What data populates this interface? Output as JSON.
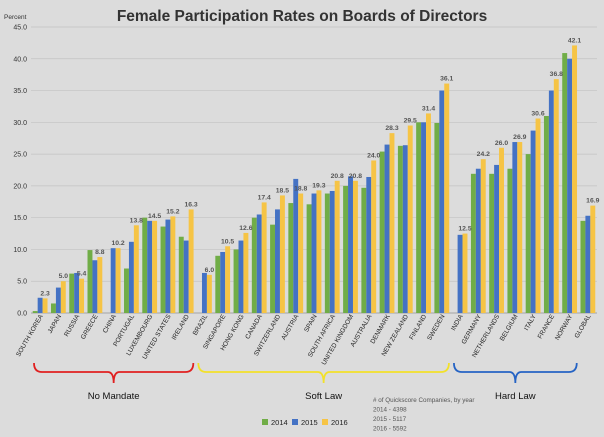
{
  "chart_data": {
    "type": "bar",
    "title": "Female Participation Rates on Boards of Directors",
    "ylabel": "Percent",
    "ylim": [
      0,
      45
    ],
    "yticks": [
      "0.0",
      "5.0",
      "10.0",
      "15.0",
      "20.0",
      "25.0",
      "30.0",
      "35.0",
      "40.0",
      "45.0"
    ],
    "grid": true,
    "legend_position": "bottom",
    "categories": [
      "SOUTH KOREA",
      "JAPAN",
      "RUSSIA",
      "GREECE",
      "CHINA",
      "PORTUGAL",
      "LUXEMBOURG",
      "UNITED STATES",
      "IRELAND",
      "BRAZIL",
      "SINGAPORE",
      "HONG KONG",
      "CANADA",
      "SWITZERLAND",
      "AUSTRIA",
      "SPAIN",
      "SOUTH AFRICA",
      "UNITED KINGDOM",
      "AUSTRALIA",
      "DENMARK",
      "NEW ZEALAND",
      "FINLAND",
      "SWEDEN",
      "INDIA",
      "GERMANY",
      "NETHERLANDS",
      "BELGIUM",
      "ITALY",
      "FRANCE",
      "NORWAY",
      "GLOBAL"
    ],
    "series": [
      {
        "name": "2014",
        "color": "#70ad47",
        "values": [
          0.3,
          1.5,
          6.2,
          9.9,
          0,
          7.0,
          15.0,
          13.6,
          12.0,
          0,
          9.0,
          10.0,
          15.0,
          13.9,
          17.3,
          17.1,
          18.8,
          20.0,
          19.7,
          25.4,
          26.3,
          30.0,
          29.9,
          0,
          21.9,
          21.9,
          22.7,
          25.0,
          31.0,
          40.9,
          14.5
        ]
      },
      {
        "name": "2015",
        "color": "#4472c4",
        "values": [
          2.4,
          4.0,
          6.3,
          8.3,
          10.2,
          11.2,
          14.5,
          14.7,
          11.4,
          6.3,
          9.6,
          11.4,
          15.5,
          16.3,
          21.1,
          18.8,
          19.2,
          21.5,
          21.4,
          26.5,
          26.4,
          30.0,
          35.0,
          12.3,
          22.7,
          23.3,
          26.9,
          28.7,
          35.0,
          40.0,
          15.3
        ]
      },
      {
        "name": "2016",
        "color": "#f6c445",
        "values": [
          2.3,
          5.0,
          5.4,
          8.8,
          10.2,
          13.8,
          14.5,
          15.2,
          16.3,
          6.0,
          10.5,
          12.6,
          17.4,
          18.5,
          18.8,
          19.3,
          20.8,
          20.8,
          24.0,
          28.3,
          29.5,
          31.4,
          36.1,
          12.5,
          24.2,
          26.0,
          26.9,
          30.6,
          36.8,
          42.1,
          16.9
        ]
      }
    ],
    "data_labels": [
      {
        "category": "SOUTH KOREA",
        "value": "2.3"
      },
      {
        "category": "JAPAN",
        "value": "5.0"
      },
      {
        "category": "RUSSIA",
        "value": "5.4"
      },
      {
        "category": "GREECE",
        "value": "8.8"
      },
      {
        "category": "CHINA",
        "value": "10.2"
      },
      {
        "category": "PORTUGAL",
        "value": "13.8"
      },
      {
        "category": "LUXEMBOURG",
        "value": "14.5"
      },
      {
        "category": "UNITED STATES",
        "value": "15.2"
      },
      {
        "category": "IRELAND",
        "value": "16.3"
      },
      {
        "category": "BRAZIL",
        "value": "6.0"
      },
      {
        "category": "SINGAPORE",
        "value": "10.5"
      },
      {
        "category": "HONG KONG",
        "value": "12.6"
      },
      {
        "category": "CANADA",
        "value": "17.4"
      },
      {
        "category": "SWITZERLAND",
        "value": "18.5"
      },
      {
        "category": "AUSTRIA",
        "value": "18.8"
      },
      {
        "category": "SPAIN",
        "value": "19.3"
      },
      {
        "category": "SOUTH AFRICA",
        "value": "20.8"
      },
      {
        "category": "UNITED KINGDOM",
        "value": "20.8"
      },
      {
        "category": "AUSTRALIA",
        "value": "24.0"
      },
      {
        "category": "DENMARK",
        "value": "28.3"
      },
      {
        "category": "NEW ZEALAND",
        "value": "29.5"
      },
      {
        "category": "FINLAND",
        "value": "31.4"
      },
      {
        "category": "SWEDEN",
        "value": "36.1"
      },
      {
        "category": "INDIA",
        "value": "12.5"
      },
      {
        "category": "GERMANY",
        "value": "24.2"
      },
      {
        "category": "NETHERLANDS",
        "value": "26.0"
      },
      {
        "category": "BELGIUM",
        "value": "26.9"
      },
      {
        "category": "ITALY",
        "value": "30.6"
      },
      {
        "category": "FRANCE",
        "value": "36.8"
      },
      {
        "category": "NORWAY",
        "value": "42.1"
      },
      {
        "category": "GLOBAL",
        "value": "16.9"
      }
    ],
    "groups": [
      {
        "label": "No Mandate",
        "from": "SOUTH KOREA",
        "to": "IRELAND",
        "color": "#e02020"
      },
      {
        "label": "Soft Law",
        "from": "BRAZIL",
        "to": "SWEDEN",
        "color": "#f2e12a"
      },
      {
        "label": "Hard Law",
        "from": "INDIA",
        "to": "NORWAY",
        "color": "#2563c4"
      }
    ],
    "annotation": [
      "# of Quickscore Companies, by year",
      "2014  -  4398",
      "2015  -  5117",
      "2016  -  5592"
    ]
  }
}
